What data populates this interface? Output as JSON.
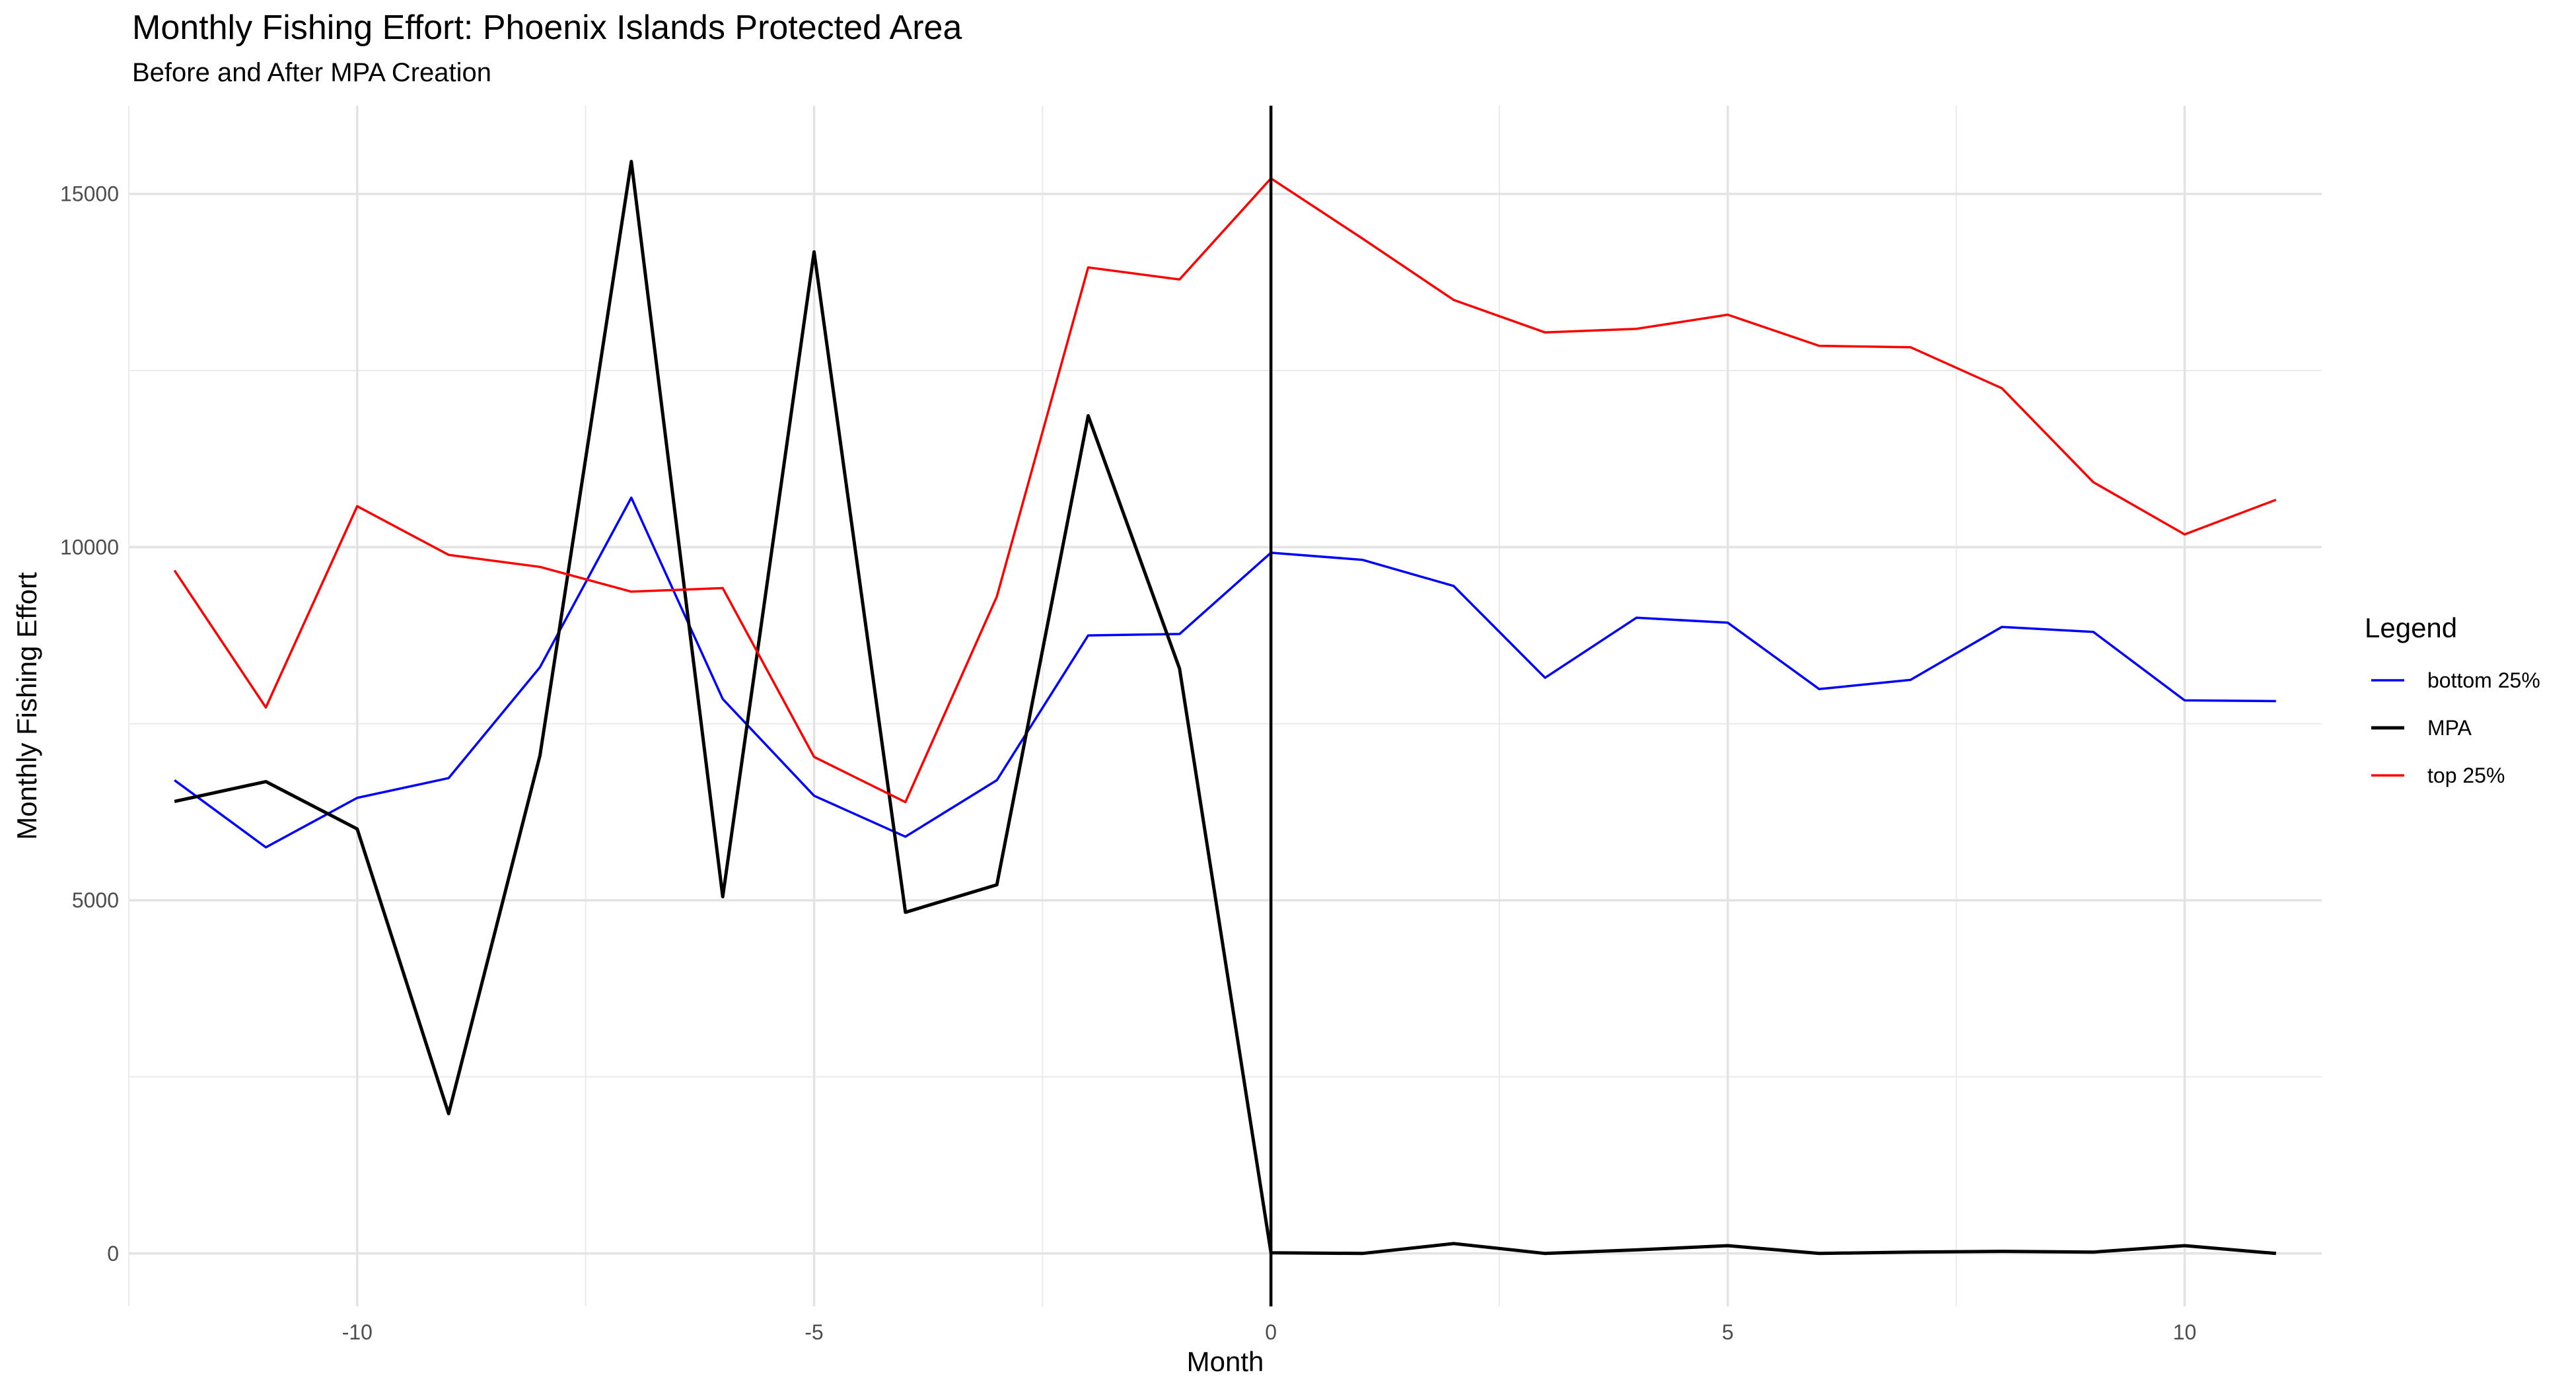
{
  "chart_data": {
    "type": "line",
    "title": "Monthly Fishing Effort: Phoenix Islands Protected Area",
    "subtitle": "Before and After MPA Creation",
    "xlabel": "Month",
    "ylabel": "Monthly Fishing Effort",
    "xlim": [
      -12.5,
      11.5
    ],
    "ylim": [
      -750,
      16250
    ],
    "x_ticks": [
      -10,
      -5,
      0,
      5,
      10
    ],
    "y_ticks": [
      0,
      5000,
      10000,
      15000
    ],
    "x_tick_labels": [
      "-10",
      "-5",
      "0",
      "5",
      "10"
    ],
    "y_tick_labels": [
      "0",
      "5000",
      "10000",
      "15000"
    ],
    "grid": true,
    "legend_position": "right",
    "legend_title": "Legend",
    "vline_x": 0,
    "x": [
      -12,
      -11,
      -10,
      -9,
      -8,
      -7,
      -6,
      -5,
      -4,
      -3,
      -2,
      -1,
      0,
      1,
      2,
      3,
      4,
      5,
      6,
      7,
      8,
      9,
      10,
      11
    ],
    "series": [
      {
        "name": "bottom 25%",
        "color": "#0000ff",
        "values": [
          6700,
          5750,
          6450,
          6730,
          8300,
          10700,
          7850,
          6480,
          5900,
          6700,
          8750,
          8770,
          9920,
          9820,
          9450,
          8150,
          9000,
          8930,
          7990,
          8120,
          8870,
          8800,
          7830,
          7820
        ]
      },
      {
        "name": "MPA",
        "color": "#000000",
        "values": [
          6400,
          6680,
          6010,
          1980,
          7050,
          15460,
          5050,
          14180,
          4830,
          5220,
          11860,
          8280,
          10,
          0,
          140,
          0,
          50,
          110,
          0,
          20,
          30,
          20,
          110,
          0
        ]
      },
      {
        "name": "top 25%",
        "color": "#ff0000",
        "values": [
          9670,
          7730,
          10580,
          9890,
          9720,
          9370,
          9420,
          7030,
          6390,
          9300,
          13960,
          13790,
          15220,
          14370,
          13500,
          13040,
          13090,
          13290,
          12850,
          12830,
          12250,
          10920,
          10180,
          10670
        ]
      }
    ]
  }
}
